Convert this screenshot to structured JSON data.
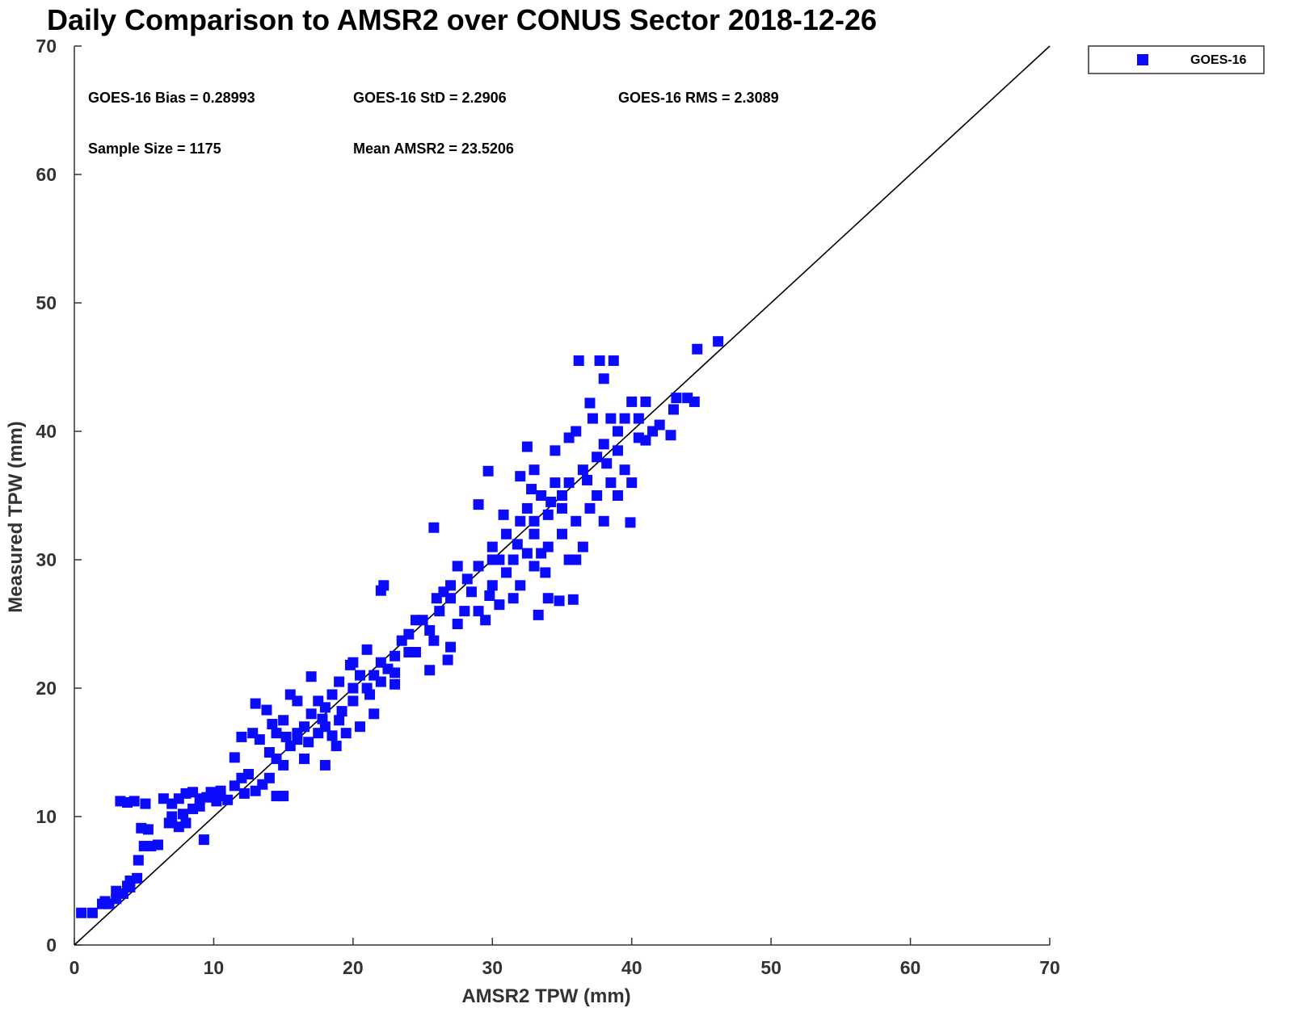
{
  "chart_data": {
    "type": "scatter",
    "title": "Daily Comparison to AMSR2 over CONUS Sector 2018-12-26",
    "xlabel": "AMSR2 TPW (mm)",
    "ylabel": "Measured TPW (mm)",
    "xlim": [
      0,
      70
    ],
    "ylim": [
      0,
      70
    ],
    "xticks": [
      "0",
      "10",
      "20",
      "30",
      "40",
      "50",
      "60",
      "70"
    ],
    "yticks": [
      "0",
      "10",
      "20",
      "30",
      "40",
      "50",
      "60",
      "70"
    ],
    "grid": false,
    "legend": {
      "position": "top-right-outside",
      "entries": [
        "GOES-16"
      ]
    },
    "reference_line": "1:1",
    "stats": {
      "bias": "GOES-16 Bias = 0.28993",
      "std": "GOES-16 StD = 2.2906",
      "rms": "GOES-16 RMS = 2.3089",
      "sample": "Sample Size = 1175",
      "mean": "Mean AMSR2 = 23.5206"
    },
    "series": [
      {
        "name": "GOES-16",
        "color": "#0a0aff",
        "marker": "square",
        "points": [
          [
            0.5,
            2.5
          ],
          [
            1.3,
            2.5
          ],
          [
            2,
            3.2
          ],
          [
            2.5,
            3.2
          ],
          [
            3,
            3.6
          ],
          [
            3,
            4.2
          ],
          [
            3.5,
            4
          ],
          [
            4,
            4.5
          ],
          [
            4,
            5
          ],
          [
            4.5,
            5.2
          ],
          [
            4.6,
            6.6
          ],
          [
            5,
            7.7
          ],
          [
            5.5,
            7.7
          ],
          [
            6,
            7.8
          ],
          [
            4.8,
            9.1
          ],
          [
            5.3,
            9
          ],
          [
            3.3,
            11.2
          ],
          [
            3.8,
            11.1
          ],
          [
            4.3,
            11.2
          ],
          [
            5.1,
            11
          ],
          [
            6.4,
            11.4
          ],
          [
            7,
            11
          ],
          [
            7.5,
            11.4
          ],
          [
            8,
            11.8
          ],
          [
            8.5,
            11.9
          ],
          [
            9,
            11.4
          ],
          [
            9.5,
            11.5
          ],
          [
            10,
            11.5
          ],
          [
            10.5,
            11.6
          ],
          [
            11,
            11.3
          ],
          [
            7,
            10
          ],
          [
            7.5,
            9.2
          ],
          [
            8,
            9.5
          ],
          [
            8.5,
            10.6
          ],
          [
            9,
            10.8
          ],
          [
            9.3,
            8.2
          ],
          [
            7.8,
            10.2
          ],
          [
            6.8,
            9.5
          ],
          [
            10.5,
            12
          ],
          [
            11.5,
            12.4
          ],
          [
            11.5,
            14.6
          ],
          [
            12,
            13
          ],
          [
            12.5,
            13.3
          ],
          [
            13,
            12
          ],
          [
            13.5,
            12.5
          ],
          [
            14,
            13
          ],
          [
            14.5,
            11.6
          ],
          [
            15,
            11.6
          ],
          [
            12,
            16.2
          ],
          [
            12.8,
            16.5
          ],
          [
            13,
            18.8
          ],
          [
            13.3,
            16
          ],
          [
            13.8,
            18.3
          ],
          [
            14,
            15
          ],
          [
            14.5,
            16.5
          ],
          [
            15,
            17.5
          ],
          [
            15,
            14
          ],
          [
            15.5,
            15.5
          ],
          [
            16,
            16
          ],
          [
            16,
            19
          ],
          [
            15.5,
            19.5
          ],
          [
            16.5,
            17
          ],
          [
            16.5,
            14.5
          ],
          [
            17,
            18
          ],
          [
            17,
            20.9
          ],
          [
            17.5,
            16.5
          ],
          [
            17.5,
            19
          ],
          [
            18,
            17
          ],
          [
            18,
            14
          ],
          [
            18.5,
            19.5
          ],
          [
            18.5,
            16.3
          ],
          [
            19,
            17.5
          ],
          [
            19,
            20.5
          ],
          [
            19.5,
            16.5
          ],
          [
            20,
            19
          ],
          [
            20,
            22
          ],
          [
            20.5,
            21
          ],
          [
            20.5,
            17
          ],
          [
            21,
            20
          ],
          [
            21,
            23
          ],
          [
            21.5,
            21
          ],
          [
            21.5,
            18
          ],
          [
            22,
            20.5
          ],
          [
            22,
            22
          ],
          [
            22.5,
            21.5
          ],
          [
            23,
            20.3
          ],
          [
            23,
            22.5
          ],
          [
            23.5,
            23.7
          ],
          [
            24,
            22.8
          ],
          [
            24.5,
            22.8
          ],
          [
            24.5,
            25.3
          ],
          [
            25,
            25.3
          ],
          [
            25.5,
            21.4
          ],
          [
            25.8,
            23.7
          ],
          [
            25.5,
            24.5
          ],
          [
            26,
            27
          ],
          [
            25.8,
            32.5
          ],
          [
            26.5,
            27.5
          ],
          [
            26.8,
            22.2
          ],
          [
            27,
            23.2
          ],
          [
            27,
            28
          ],
          [
            27.5,
            25
          ],
          [
            27.5,
            29.5
          ],
          [
            28,
            26
          ],
          [
            28.5,
            27.5
          ],
          [
            29,
            26
          ],
          [
            29,
            29.5
          ],
          [
            29,
            34.3
          ],
          [
            29.5,
            25.3
          ],
          [
            30,
            28
          ],
          [
            30,
            31
          ],
          [
            29.7,
            36.9
          ],
          [
            30.5,
            26.5
          ],
          [
            30.5,
            30
          ],
          [
            31,
            29
          ],
          [
            31,
            32
          ],
          [
            31.5,
            27
          ],
          [
            31.5,
            30
          ],
          [
            32,
            28
          ],
          [
            32,
            33
          ],
          [
            32,
            36.5
          ],
          [
            32.5,
            30.5
          ],
          [
            32.5,
            34
          ],
          [
            32.5,
            38.8
          ],
          [
            33,
            29.5
          ],
          [
            33,
            32
          ],
          [
            33,
            37
          ],
          [
            33.3,
            25.7
          ],
          [
            33.5,
            30.5
          ],
          [
            33.5,
            35
          ],
          [
            34,
            31
          ],
          [
            34,
            27
          ],
          [
            34,
            33.5
          ],
          [
            34.5,
            36
          ],
          [
            34.5,
            38.5
          ],
          [
            34.8,
            26.8
          ],
          [
            35,
            32
          ],
          [
            35,
            35
          ],
          [
            35.5,
            30
          ],
          [
            35.5,
            36
          ],
          [
            35.5,
            39.5
          ],
          [
            35.8,
            26.9
          ],
          [
            36,
            33
          ],
          [
            36,
            40
          ],
          [
            36.2,
            45.5
          ],
          [
            36,
            30
          ],
          [
            36.5,
            37
          ],
          [
            36.5,
            31
          ],
          [
            37,
            34
          ],
          [
            37,
            42.2
          ],
          [
            37.2,
            41
          ],
          [
            37.5,
            38
          ],
          [
            37.7,
            45.5
          ],
          [
            37.5,
            35
          ],
          [
            38,
            39
          ],
          [
            38,
            44.1
          ],
          [
            38,
            33
          ],
          [
            38.5,
            41
          ],
          [
            38.7,
            45.5
          ],
          [
            38.5,
            36
          ],
          [
            39,
            40
          ],
          [
            39,
            35
          ],
          [
            39.5,
            41
          ],
          [
            39.5,
            37
          ],
          [
            39.9,
            32.9
          ],
          [
            40,
            42.3
          ],
          [
            40.5,
            41
          ],
          [
            40.5,
            39.5
          ],
          [
            41,
            42.3
          ],
          [
            41.5,
            40
          ],
          [
            42,
            40.5
          ],
          [
            42.8,
            39.7
          ],
          [
            43,
            41.7
          ],
          [
            43.2,
            42.6
          ],
          [
            44,
            42.6
          ],
          [
            44.5,
            42.3
          ],
          [
            44.7,
            46.4
          ],
          [
            46.2,
            47
          ],
          [
            41,
            39.3
          ],
          [
            40,
            36
          ],
          [
            39,
            38.5
          ],
          [
            22,
            27.6
          ],
          [
            22.2,
            28
          ],
          [
            16,
            16.5
          ],
          [
            14.5,
            14.5
          ],
          [
            18,
            18.5
          ],
          [
            20,
            20
          ],
          [
            27,
            27
          ],
          [
            30,
            30
          ],
          [
            33,
            33
          ],
          [
            35,
            34
          ],
          [
            16.8,
            15.8
          ],
          [
            17.8,
            17.6
          ],
          [
            19.2,
            18.2
          ],
          [
            21.2,
            19.5
          ],
          [
            15.2,
            16.2
          ],
          [
            14.2,
            17.2
          ],
          [
            18.8,
            15.5
          ],
          [
            31.8,
            31.2
          ],
          [
            32.8,
            35.5
          ],
          [
            34.2,
            34.5
          ],
          [
            33.8,
            29
          ],
          [
            30.8,
            33.5
          ],
          [
            36.8,
            36.2
          ],
          [
            38.2,
            37.5
          ],
          [
            28.2,
            28.5
          ],
          [
            29.8,
            27.2
          ],
          [
            26.2,
            26
          ],
          [
            24,
            24.2
          ],
          [
            23,
            21.2
          ],
          [
            19.8,
            21.8
          ],
          [
            12.2,
            11.8
          ],
          [
            10.2,
            11.2
          ],
          [
            9.8,
            11.9
          ],
          [
            3.8,
            4.6
          ],
          [
            2.2,
            3.4
          ]
        ]
      }
    ]
  }
}
